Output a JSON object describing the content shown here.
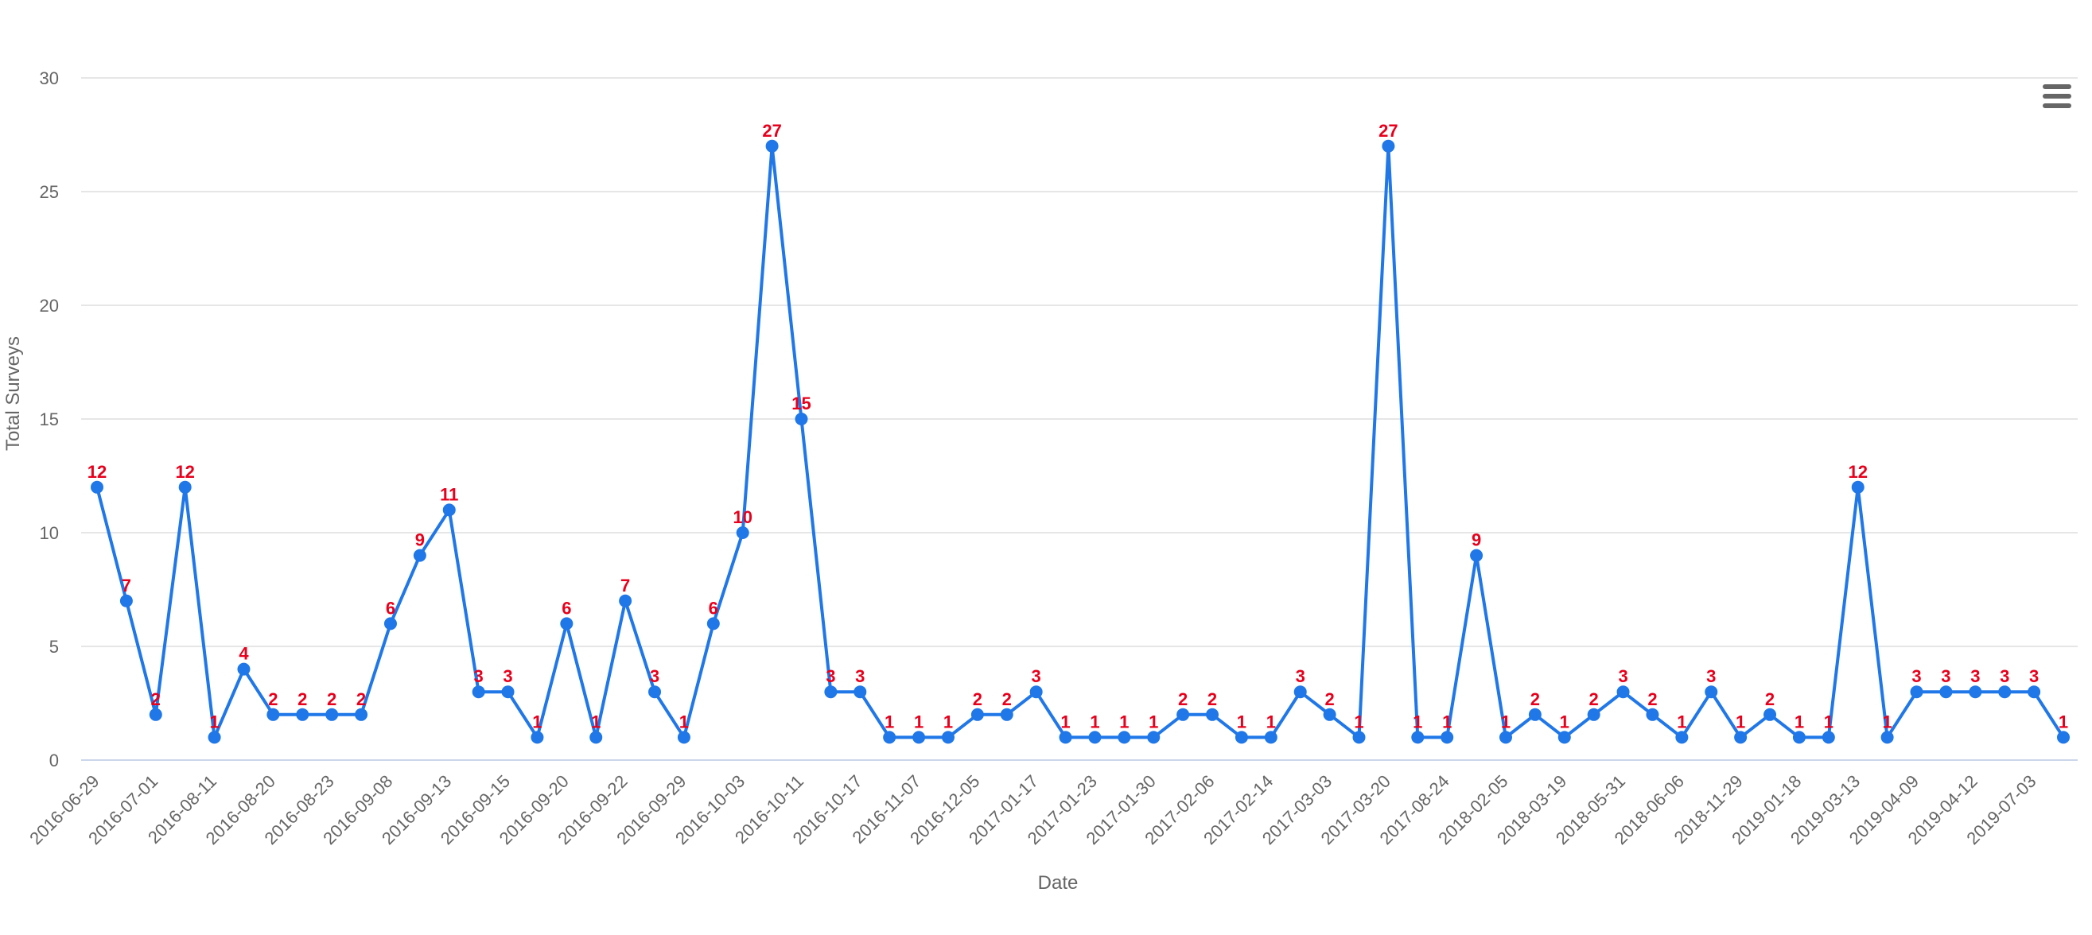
{
  "chart_data": {
    "type": "line",
    "title": "",
    "xlabel": "Date",
    "ylabel": "Total Surveys",
    "ylim": [
      0,
      30
    ],
    "yticks": [
      0,
      5,
      10,
      15,
      20,
      25,
      30
    ],
    "grid": true,
    "legend": "none",
    "data_labels": true,
    "x_tick_labels": [
      "2016-06-29",
      "2016-07-01",
      "2016-08-11",
      "2016-08-20",
      "2016-08-23",
      "2016-09-08",
      "2016-09-13",
      "2016-09-15",
      "2016-09-20",
      "2016-09-22",
      "2016-09-29",
      "2016-10-03",
      "2016-10-11",
      "2016-10-17",
      "2016-11-07",
      "2016-12-05",
      "2017-01-17",
      "2017-01-23",
      "2017-01-30",
      "2017-02-06",
      "2017-02-14",
      "2017-03-03",
      "2017-03-20",
      "2017-08-24",
      "2018-02-05",
      "2018-03-19",
      "2018-05-31",
      "2018-06-06",
      "2018-11-29",
      "2019-01-18",
      "2019-03-13",
      "2019-04-09",
      "2019-04-12",
      "2019-07-03"
    ],
    "series": [
      {
        "values": [
          12,
          7,
          2,
          12,
          1,
          4,
          2,
          2,
          2,
          2,
          6,
          9,
          11,
          3,
          3,
          1,
          6,
          1,
          7,
          3,
          1,
          6,
          10,
          27,
          15,
          3,
          3,
          1,
          1,
          1,
          2,
          2,
          3,
          1,
          1,
          1,
          1,
          2,
          2,
          1,
          1,
          3,
          2,
          1,
          27,
          1,
          1,
          9,
          1,
          2,
          1,
          2,
          3,
          2,
          1,
          3,
          1,
          2,
          1,
          1,
          12,
          1,
          3,
          3,
          3,
          3,
          3,
          1
        ]
      }
    ],
    "colors": {
      "line": "#1f77e8",
      "label": "#e8001c",
      "grid": "#e6e6e6",
      "axis_line": "#ccd6eb",
      "axis_text": "#666666"
    }
  },
  "menu": {
    "icon": "hamburger-menu-icon"
  }
}
